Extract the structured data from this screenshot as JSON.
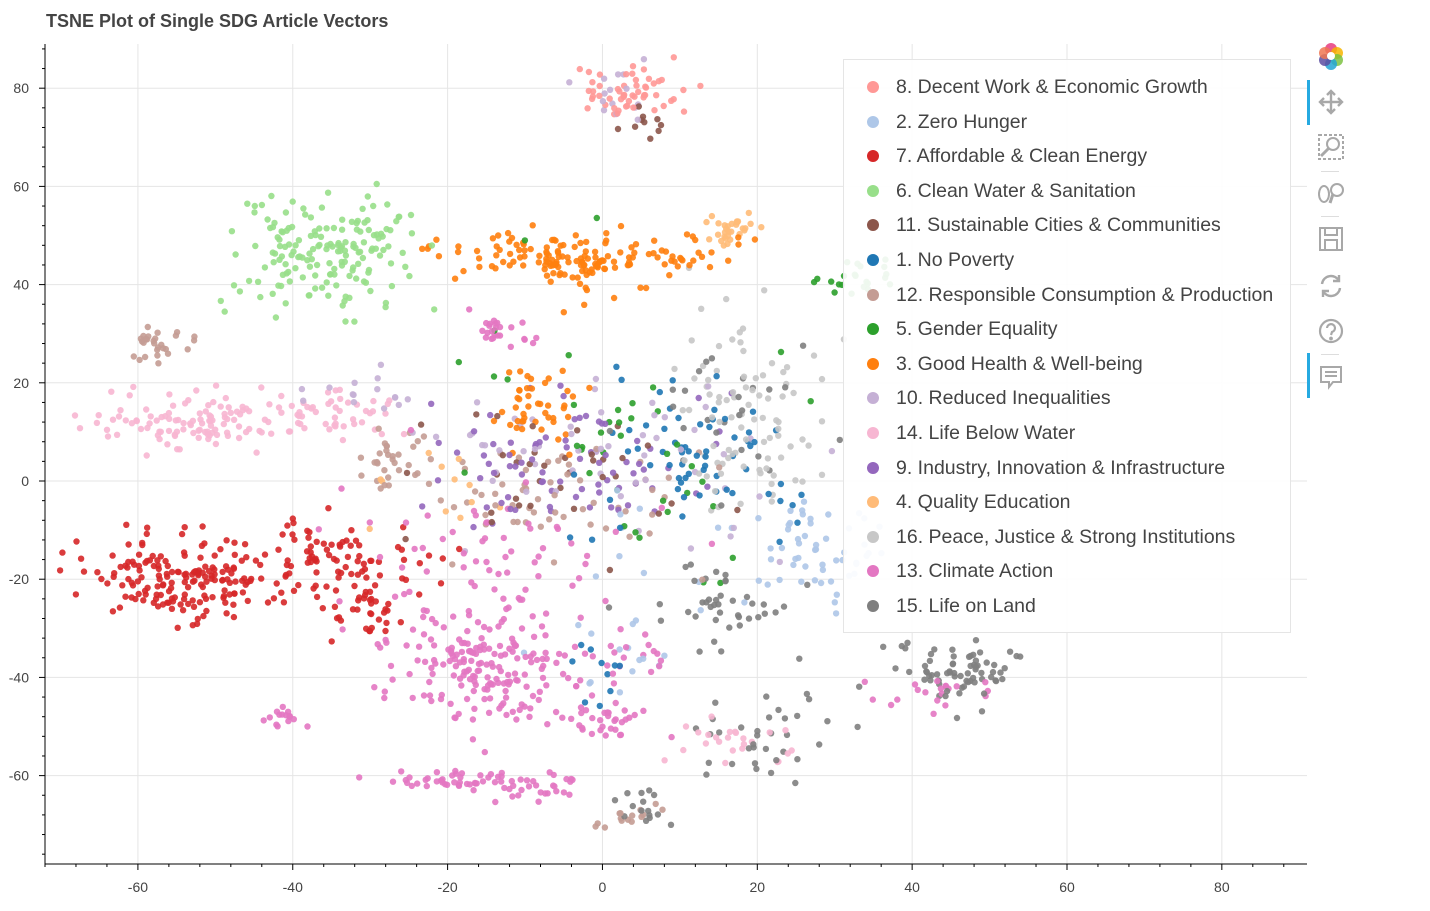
{
  "title": "TSNE Plot of Single SDG Article Vectors",
  "chart_data": {
    "type": "scatter",
    "title": "TSNE Plot of Single SDG Article Vectors",
    "xlabel": "",
    "ylabel": "",
    "xlim": [
      -72,
      91
    ],
    "ylim": [
      -78,
      89
    ],
    "x_ticks": [
      -60,
      -40,
      -20,
      0,
      20,
      40,
      60,
      80
    ],
    "y_ticks": [
      80,
      60,
      40,
      20,
      0,
      -20,
      -40,
      -60
    ],
    "x_tick_labels": [
      "-60",
      "-40",
      "-20",
      "0",
      "20",
      "40",
      "60",
      "80"
    ],
    "y_tick_labels": [
      "80",
      "60",
      "40",
      "20",
      "0",
      "-20",
      "-40",
      "-60"
    ],
    "grid": true,
    "legend_position": "top-right",
    "point_alpha": 0.9,
    "series": [
      {
        "name": "8. Decent Work & Economic Growth",
        "color": "#ff9896",
        "clusters": [
          {
            "cx": 3,
            "cy": 79,
            "sx": 4,
            "sy": 3,
            "n": 55
          }
        ]
      },
      {
        "name": "2. Zero Hunger",
        "color": "#aec7e8",
        "clusters": [
          {
            "cx": 28,
            "cy": -14,
            "sx": 5,
            "sy": 5,
            "n": 55
          },
          {
            "cx": 2,
            "cy": -25,
            "sx": 5,
            "sy": 12,
            "n": 25
          }
        ]
      },
      {
        "name": "7. Affordable & Clean Energy",
        "color": "#d62728",
        "clusters": [
          {
            "cx": -55,
            "cy": -20,
            "sx": 6,
            "sy": 4,
            "n": 170
          },
          {
            "cx": -36,
            "cy": -16,
            "sx": 6,
            "sy": 4,
            "n": 80
          },
          {
            "cx": -30,
            "cy": -26,
            "sx": 4,
            "sy": 4,
            "n": 40
          }
        ]
      },
      {
        "name": "6. Clean Water & Sanitation",
        "color": "#98df8a",
        "clusters": [
          {
            "cx": -36,
            "cy": 47,
            "sx": 6,
            "sy": 6,
            "n": 170
          }
        ]
      },
      {
        "name": "11.  Sustainable Cities & Communities",
        "color": "#8c564b",
        "clusters": [
          {
            "cx": -5,
            "cy": 2,
            "sx": 9,
            "sy": 7,
            "n": 35
          },
          {
            "cx": 5,
            "cy": 72,
            "sx": 1.5,
            "sy": 2,
            "n": 10
          }
        ]
      },
      {
        "name": "1. No Poverty",
        "color": "#1f77b4",
        "clusters": [
          {
            "cx": 13,
            "cy": 5,
            "sx": 8,
            "sy": 7,
            "n": 65
          },
          {
            "cx": 0,
            "cy": -40,
            "sx": 3,
            "sy": 4,
            "n": 10
          }
        ]
      },
      {
        "name": "12.  Responsible Consumption & Production",
        "color": "#c49c94",
        "clusters": [
          {
            "cx": -57,
            "cy": 28,
            "sx": 2,
            "sy": 2,
            "n": 28
          },
          {
            "cx": -28,
            "cy": 3,
            "sx": 2,
            "sy": 3,
            "n": 30
          },
          {
            "cx": -8,
            "cy": -4,
            "sx": 9,
            "sy": 7,
            "n": 60
          },
          {
            "cx": 4,
            "cy": -68,
            "sx": 2,
            "sy": 2,
            "n": 15
          }
        ]
      },
      {
        "name": "5. Gender Equality",
        "color": "#2ca02c",
        "clusters": [
          {
            "cx": 32,
            "cy": 41,
            "sx": 3,
            "sy": 2,
            "n": 22
          },
          {
            "cx": 2,
            "cy": 10,
            "sx": 12,
            "sy": 14,
            "n": 40
          }
        ]
      },
      {
        "name": "3. Good Health & Well-being",
        "color": "#ff7f0e",
        "clusters": [
          {
            "cx": -7,
            "cy": 46,
            "sx": 5,
            "sy": 3,
            "n": 80
          },
          {
            "cx": -1,
            "cy": 42,
            "sx": 3,
            "sy": 3,
            "n": 35
          },
          {
            "cx": 9,
            "cy": 47,
            "sx": 5,
            "sy": 2,
            "n": 35
          },
          {
            "cx": -8,
            "cy": 14,
            "sx": 3,
            "sy": 4,
            "n": 45
          },
          {
            "cx": -20,
            "cy": 47,
            "sx": 4,
            "sy": 2,
            "n": 10
          }
        ]
      },
      {
        "name": "10.  Reduced Inequalities",
        "color": "#c5b0d5",
        "clusters": [
          {
            "cx": 2,
            "cy": 78,
            "sx": 2,
            "sy": 3,
            "n": 15
          },
          {
            "cx": 2,
            "cy": 5,
            "sx": 12,
            "sy": 10,
            "n": 55
          },
          {
            "cx": -31,
            "cy": 18,
            "sx": 5,
            "sy": 2,
            "n": 15
          }
        ]
      },
      {
        "name": "14.  Life Below Water",
        "color": "#f7b6d2",
        "clusters": [
          {
            "cx": -52,
            "cy": 12,
            "sx": 7,
            "sy": 3,
            "n": 110
          },
          {
            "cx": -36,
            "cy": 14,
            "sx": 5,
            "sy": 3,
            "n": 45
          },
          {
            "cx": 19,
            "cy": -53,
            "sx": 4,
            "sy": 3,
            "n": 25
          }
        ]
      },
      {
        "name": "9. Industry, Innovation & Infrastructure",
        "color": "#9467bd",
        "clusters": [
          {
            "cx": -5,
            "cy": 2,
            "sx": 11,
            "sy": 7,
            "n": 80
          }
        ]
      },
      {
        "name": "4. Quality Education",
        "color": "#ffbb78",
        "clusters": [
          {
            "cx": 17,
            "cy": 51,
            "sx": 2,
            "sy": 2,
            "n": 30
          },
          {
            "cx": -20,
            "cy": -3,
            "sx": 5,
            "sy": 5,
            "n": 12
          }
        ]
      },
      {
        "name": "16.  Peace, Justice & Strong Institutions",
        "color": "#c7c7c7",
        "clusters": [
          {
            "cx": 19,
            "cy": 14,
            "sx": 5,
            "sy": 9,
            "n": 90
          }
        ]
      },
      {
        "name": "13.  Climate Action",
        "color": "#e377c2",
        "clusters": [
          {
            "cx": -15,
            "cy": -38,
            "sx": 7,
            "sy": 6,
            "n": 200
          },
          {
            "cx": -14,
            "cy": -14,
            "sx": 9,
            "sy": 7,
            "n": 60
          },
          {
            "cx": -13,
            "cy": 30,
            "sx": 2,
            "sy": 2,
            "n": 25
          },
          {
            "cx": -42,
            "cy": -48,
            "sx": 1.5,
            "sy": 1,
            "n": 15
          },
          {
            "cx": -21,
            "cy": -61,
            "sx": 4,
            "sy": 1,
            "n": 30
          },
          {
            "cx": -13,
            "cy": -62,
            "sx": 3,
            "sy": 2,
            "n": 25
          },
          {
            "cx": -6,
            "cy": -62,
            "sx": 2,
            "sy": 1.5,
            "n": 15
          },
          {
            "cx": 1,
            "cy": -49,
            "sx": 3,
            "sy": 2,
            "n": 30
          },
          {
            "cx": 43,
            "cy": -43,
            "sx": 4,
            "sy": 2,
            "n": 20
          },
          {
            "cx": 5,
            "cy": -35,
            "sx": 2,
            "sy": 2,
            "n": 12
          }
        ]
      },
      {
        "name": "15.  Life on Land",
        "color": "#7f7f7f",
        "clusters": [
          {
            "cx": 47,
            "cy": -39,
            "sx": 4,
            "sy": 3,
            "n": 70
          },
          {
            "cx": 16,
            "cy": -27,
            "sx": 5,
            "sy": 4,
            "n": 40
          },
          {
            "cx": 22,
            "cy": -53,
            "sx": 5,
            "sy": 5,
            "n": 35
          },
          {
            "cx": 17,
            "cy": 15,
            "sx": 6,
            "sy": 9,
            "n": 25
          },
          {
            "cx": 5,
            "cy": -66,
            "sx": 2,
            "sy": 2,
            "n": 15
          }
        ]
      }
    ]
  },
  "toolbar": {
    "tools": [
      {
        "name": "bokeh-logo-icon",
        "active": false
      },
      {
        "name": "pan-icon",
        "active": true
      },
      {
        "name": "box-zoom-icon",
        "active": false
      },
      {
        "name": "wheel-zoom-icon",
        "active": false
      },
      {
        "name": "save-icon",
        "active": false
      },
      {
        "name": "reset-icon",
        "active": false
      },
      {
        "name": "help-icon",
        "active": false
      },
      {
        "name": "hover-icon",
        "active": true
      }
    ]
  }
}
